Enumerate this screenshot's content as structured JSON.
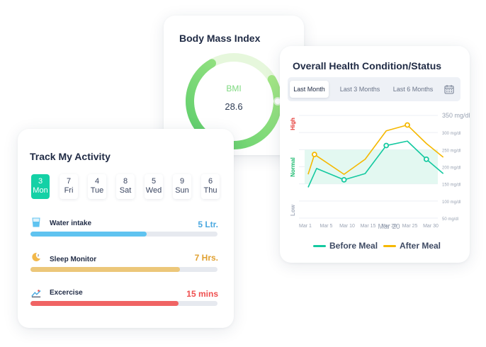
{
  "bmi": {
    "title": "Body Mass Index",
    "label": "BMI",
    "value": "28.6",
    "gauge_fraction": 0.75
  },
  "activity": {
    "title": "Track My Activity",
    "days": [
      {
        "num": "3",
        "name": "Mon",
        "active": true
      },
      {
        "num": "7",
        "name": "Fri",
        "active": false
      },
      {
        "num": "4",
        "name": "Tue",
        "active": false
      },
      {
        "num": "8",
        "name": "Sat",
        "active": false
      },
      {
        "num": "5",
        "name": "Wed",
        "active": false
      },
      {
        "num": "9",
        "name": "Sun",
        "active": false
      },
      {
        "num": "6",
        "name": "Thu",
        "active": false
      }
    ],
    "items": [
      {
        "label": "Water intake",
        "value": "5 Ltr.",
        "color": "#5fc3f0",
        "value_color": "#4aa8e0",
        "progress": 0.62,
        "icon": "water-glass-icon"
      },
      {
        "label": "Sleep Monitor",
        "value": "7 Hrs.",
        "color": "#ecc77a",
        "value_color": "#e0a030",
        "progress": 0.8,
        "icon": "sleep-moon-icon"
      },
      {
        "label": "Excercise",
        "value": "15 mins",
        "color": "#f06464",
        "value_color": "#ef4f4f",
        "progress": 0.79,
        "icon": "exercise-icon"
      }
    ]
  },
  "health": {
    "title": "Overall Health Condition/Status",
    "tabs": [
      "Last Month",
      "Last 3 Months",
      "Last 6 Months"
    ],
    "active_tab": "Last Month",
    "legend": {
      "before": "Before Meal",
      "after": "After Meal"
    }
  },
  "colors": {
    "accent": "#14d1a6",
    "before_meal": "#14c9a0",
    "after_meal": "#f5b800",
    "high": "#e53935",
    "normal": "#1dbb70",
    "low": "#a8b0bf"
  },
  "chart_data": {
    "type": "line",
    "title": "Overall Health Condition/Status",
    "x_ticks": [
      "Mar 1",
      "Mar 5",
      "Mar 10",
      "Mar 15",
      "Mar 20",
      "Mar 25",
      "Mar 30"
    ],
    "x_center_label": "Mar 20",
    "y_ticks": [
      "350 mg/dl",
      "300 mg/dl",
      "250 mg/dl",
      "200 mg/dl",
      "150 mg/dl",
      "100 mg/dl",
      "50 mg/dl"
    ],
    "y_ticks_values": [
      350,
      300,
      250,
      200,
      150,
      100,
      50
    ],
    "ylim": [
      50,
      350
    ],
    "bands": [
      "High",
      "Normal",
      "Low"
    ],
    "normal_range": [
      150,
      250
    ],
    "series": [
      {
        "name": "Before Meal",
        "color": "#14c9a0",
        "x": [
          0.3,
          0.7,
          2.0,
          3.0,
          4.0,
          5.0,
          5.9,
          6.7
        ],
        "values": [
          140,
          195,
          162,
          180,
          262,
          275,
          222,
          180
        ],
        "markers": [
          2.0,
          4.0,
          5.9
        ]
      },
      {
        "name": "After Meal",
        "color": "#f5b800",
        "x": [
          0.3,
          0.6,
          2.0,
          3.0,
          4.0,
          5.0,
          5.9,
          6.7
        ],
        "values": [
          178,
          236,
          178,
          222,
          305,
          322,
          268,
          228
        ],
        "markers": [
          0.6,
          5.0
        ]
      }
    ]
  }
}
